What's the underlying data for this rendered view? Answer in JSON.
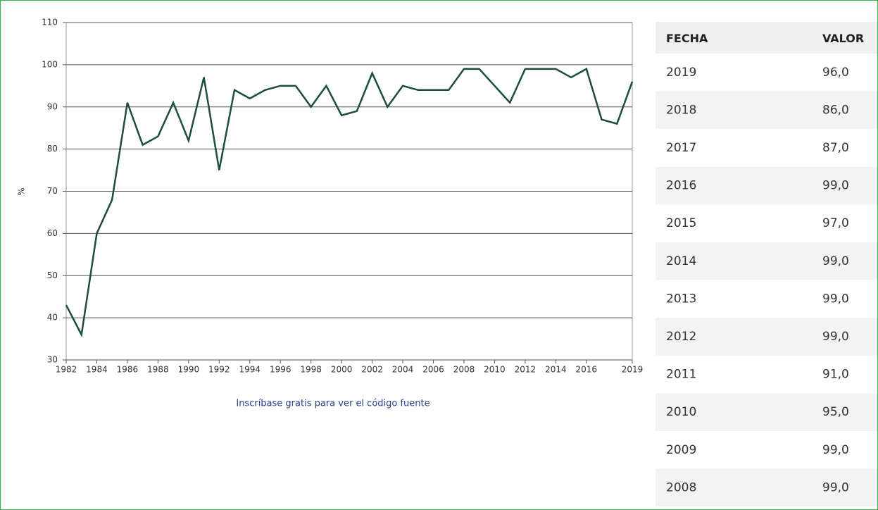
{
  "chart_data": {
    "type": "line",
    "y_label": "%",
    "x": [
      1982,
      1983,
      1984,
      1985,
      1986,
      1987,
      1988,
      1989,
      1990,
      1991,
      1992,
      1993,
      1994,
      1995,
      1996,
      1997,
      1998,
      1999,
      2000,
      2001,
      2002,
      2003,
      2004,
      2005,
      2006,
      2007,
      2008,
      2009,
      2010,
      2011,
      2012,
      2013,
      2014,
      2015,
      2016,
      2017,
      2018,
      2019
    ],
    "values": [
      43,
      36,
      60,
      68,
      91,
      81,
      83,
      91,
      82,
      97,
      75,
      94,
      92,
      94,
      95,
      95,
      90,
      95,
      88,
      89,
      98,
      90,
      95,
      94,
      94,
      94,
      99,
      99,
      95,
      91,
      99,
      99,
      99,
      97,
      99,
      87,
      86,
      96
    ],
    "color": "#1e4d3a",
    "xlim": [
      1982,
      2019
    ],
    "xticks": [
      1982,
      1984,
      1986,
      1988,
      1990,
      1992,
      1994,
      1996,
      1998,
      2000,
      2002,
      2004,
      2006,
      2008,
      2010,
      2012,
      2014,
      2016,
      2019
    ],
    "ylim": [
      30,
      110
    ],
    "yticks": [
      30,
      40,
      50,
      60,
      70,
      80,
      90,
      100,
      110
    ],
    "grid": true
  },
  "link_text": "Inscríbase gratis para ver el código fuente",
  "table": {
    "header": [
      "FECHA",
      "VALOR"
    ],
    "rows": [
      [
        "2019",
        "96,0"
      ],
      [
        "2018",
        "86,0"
      ],
      [
        "2017",
        "87,0"
      ],
      [
        "2016",
        "99,0"
      ],
      [
        "2015",
        "97,0"
      ],
      [
        "2014",
        "99,0"
      ],
      [
        "2013",
        "99,0"
      ],
      [
        "2012",
        "99,0"
      ],
      [
        "2011",
        "91,0"
      ],
      [
        "2010",
        "95,0"
      ],
      [
        "2009",
        "99,0"
      ],
      [
        "2008",
        "99,0"
      ]
    ]
  }
}
